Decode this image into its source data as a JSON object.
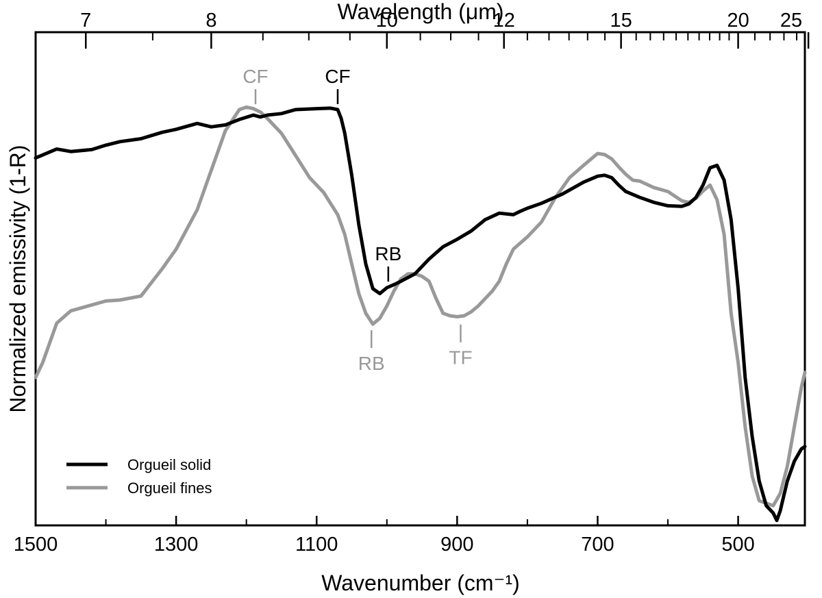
{
  "chart_data": {
    "type": "line",
    "xlabel": "Wavenumber (cm⁻¹)",
    "ylabel": "Normalized emissivity (1-R)",
    "top_axis_label": "Wavelength (μm)",
    "xlim": [
      1500,
      405
    ],
    "ylim": [
      0,
      1
    ],
    "x_ticks": [
      1500,
      1300,
      1100,
      900,
      700,
      500
    ],
    "x_minor_ticks": [
      1400,
      1200,
      1000,
      800,
      600
    ],
    "top_ticks_um": [
      7,
      8,
      10,
      12,
      15,
      20,
      25
    ],
    "top_minor_ticks_um": [
      7.5,
      8.5,
      9,
      9.5,
      10.5,
      11,
      11.5,
      12.5,
      13,
      13.5,
      14,
      14.5,
      15.5,
      16,
      16.5,
      17,
      17.5,
      18,
      18.5,
      19,
      19.5,
      21,
      22,
      23,
      24
    ],
    "grid": false,
    "legend_position": "bottom-left",
    "series": [
      {
        "name": "Orgueil solid",
        "color": "#000000",
        "x": [
          1500,
          1470,
          1450,
          1420,
          1400,
          1380,
          1350,
          1320,
          1300,
          1270,
          1250,
          1230,
          1210,
          1190,
          1180,
          1170,
          1150,
          1130,
          1100,
          1080,
          1070,
          1065,
          1060,
          1050,
          1040,
          1030,
          1020,
          1010,
          1000,
          990,
          980,
          960,
          940,
          920,
          900,
          880,
          860,
          840,
          820,
          810,
          800,
          780,
          750,
          720,
          700,
          690,
          680,
          670,
          660,
          640,
          620,
          600,
          580,
          570,
          560,
          550,
          540,
          530,
          520,
          510,
          500,
          490,
          480,
          470,
          460,
          450,
          445,
          440,
          435,
          430,
          420,
          410,
          405
        ],
        "y": [
          0.745,
          0.763,
          0.758,
          0.762,
          0.771,
          0.778,
          0.784,
          0.797,
          0.803,
          0.815,
          0.808,
          0.812,
          0.823,
          0.832,
          0.828,
          0.832,
          0.835,
          0.843,
          0.845,
          0.846,
          0.843,
          0.825,
          0.795,
          0.71,
          0.61,
          0.53,
          0.48,
          0.47,
          0.482,
          0.488,
          0.495,
          0.51,
          0.54,
          0.565,
          0.58,
          0.597,
          0.62,
          0.633,
          0.63,
          0.637,
          0.643,
          0.653,
          0.672,
          0.696,
          0.708,
          0.71,
          0.705,
          0.69,
          0.677,
          0.665,
          0.655,
          0.648,
          0.647,
          0.652,
          0.665,
          0.69,
          0.725,
          0.73,
          0.7,
          0.62,
          0.48,
          0.3,
          0.18,
          0.09,
          0.04,
          0.025,
          0.01,
          0.03,
          0.06,
          0.09,
          0.13,
          0.155,
          0.16
        ]
      },
      {
        "name": "Orgueil fines",
        "color": "#999999",
        "x": [
          1500,
          1490,
          1470,
          1450,
          1420,
          1400,
          1380,
          1350,
          1320,
          1300,
          1270,
          1250,
          1230,
          1210,
          1200,
          1190,
          1180,
          1170,
          1150,
          1130,
          1110,
          1090,
          1070,
          1060,
          1050,
          1040,
          1030,
          1020,
          1010,
          1000,
          990,
          980,
          970,
          960,
          950,
          940,
          930,
          920,
          910,
          900,
          890,
          880,
          870,
          860,
          850,
          840,
          830,
          820,
          800,
          780,
          760,
          740,
          720,
          700,
          690,
          680,
          670,
          660,
          650,
          640,
          620,
          600,
          580,
          570,
          560,
          550,
          540,
          530,
          520,
          510,
          500,
          490,
          480,
          470,
          460,
          450,
          440,
          430,
          420,
          410,
          405
        ],
        "y": [
          0.3,
          0.33,
          0.41,
          0.435,
          0.447,
          0.455,
          0.457,
          0.465,
          0.52,
          0.56,
          0.64,
          0.72,
          0.8,
          0.843,
          0.848,
          0.845,
          0.838,
          0.825,
          0.795,
          0.75,
          0.705,
          0.675,
          0.63,
          0.59,
          0.53,
          0.47,
          0.43,
          0.408,
          0.42,
          0.445,
          0.475,
          0.5,
          0.51,
          0.51,
          0.505,
          0.495,
          0.46,
          0.43,
          0.425,
          0.423,
          0.425,
          0.433,
          0.445,
          0.46,
          0.475,
          0.495,
          0.53,
          0.56,
          0.585,
          0.615,
          0.665,
          0.705,
          0.73,
          0.754,
          0.752,
          0.743,
          0.727,
          0.712,
          0.7,
          0.698,
          0.685,
          0.677,
          0.658,
          0.655,
          0.663,
          0.678,
          0.69,
          0.66,
          0.59,
          0.43,
          0.33,
          0.2,
          0.1,
          0.05,
          0.045,
          0.04,
          0.065,
          0.12,
          0.2,
          0.28,
          0.31
        ]
      }
    ],
    "annotations": [
      {
        "text": "CF",
        "x": 1187,
        "color": "#999999",
        "placement": "above"
      },
      {
        "text": "CF",
        "x": 1070,
        "color": "#000000",
        "placement": "above"
      },
      {
        "text": "RB",
        "x": 998,
        "color": "#000000",
        "placement": "above"
      },
      {
        "text": "RB",
        "x": 1022,
        "color": "#999999",
        "placement": "below"
      },
      {
        "text": "TF",
        "x": 895,
        "color": "#999999",
        "placement": "below"
      }
    ]
  }
}
